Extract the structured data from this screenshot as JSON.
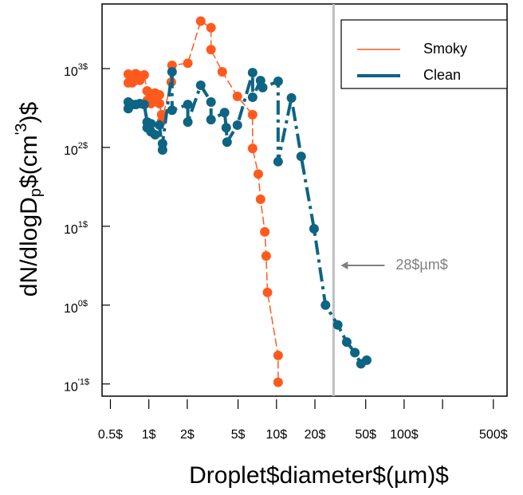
{
  "chart_data": {
    "type": "scatter",
    "xlabel": "Droplet$diameter$(µm)$",
    "ylabel": {
      "main": "dN/dlogD",
      "sub": "p",
      "mid": "$(cm",
      "sup": "'3",
      "end": ")$"
    },
    "xlog": true,
    "ylog": true,
    "xlim": [
      0.43,
      640
    ],
    "ylim": [
      0.07,
      6600
    ],
    "xticks": [
      {
        "value": 0.5,
        "label": "0.5$"
      },
      {
        "value": 1,
        "label": "1$"
      },
      {
        "value": 2,
        "label": "2$"
      },
      {
        "value": 5,
        "label": "5$"
      },
      {
        "value": 10,
        "label": "10$"
      },
      {
        "value": 20,
        "label": "20$"
      },
      {
        "value": 50,
        "label": "50$"
      },
      {
        "value": 100,
        "label": "100$"
      },
      {
        "value": 500,
        "label": "500$"
      }
    ],
    "xticks_unlabeled": [
      200
    ],
    "yticks": [
      {
        "value": 1000,
        "label": "10",
        "exponent": "3$"
      },
      {
        "value": 100,
        "label": "10",
        "exponent": "2$"
      },
      {
        "value": 10,
        "label": "10",
        "exponent": "1$"
      },
      {
        "value": 1,
        "label": "10",
        "exponent": "0$"
      },
      {
        "value": 0.1,
        "label": "10",
        "exponent": "'1$"
      }
    ],
    "vline": {
      "x": 28,
      "color": "#c0c0c0",
      "label": "28$µm$"
    },
    "legend": "upper right",
    "series": [
      {
        "name": "Smoky",
        "color": "#ff5a1e",
        "style": "dashed-thin",
        "x": [
          0.69,
          0.69,
          0.74,
          0.74,
          0.79,
          0.79,
          0.85,
          0.85,
          0.92,
          0.97,
          0.97,
          1.04,
          1.04,
          1.12,
          1.12,
          1.21,
          1.21,
          1.26,
          1.26,
          1.5,
          1.52,
          2.02,
          2.55,
          3.07,
          3.07,
          3.76,
          4.94,
          6.5,
          6.5,
          7.2,
          7.5,
          8.1,
          8.3,
          8.5,
          10.3,
          10.3
        ],
        "values": [
          850,
          660,
          770,
          660,
          860,
          710,
          810,
          710,
          830,
          520,
          395,
          480,
          360,
          490,
          405,
          465,
          360,
          260,
          215,
          675,
          1100,
          1170,
          4000,
          3300,
          1740,
          910,
          445,
          260,
          97,
          46,
          22,
          8.5,
          4.2,
          1.45,
          0.23,
          0.105
        ]
      },
      {
        "name": "Clean",
        "color": "#0e6483",
        "style": "dashdot-thick",
        "x": [
          0.69,
          0.69,
          0.74,
          0.79,
          0.85,
          0.92,
          0.97,
          0.97,
          1.04,
          1.04,
          1.12,
          1.21,
          1.28,
          1.28,
          1.52,
          1.52,
          2.02,
          2.02,
          2.55,
          3.07,
          3.07,
          3.92,
          4.04,
          4.1,
          4.94,
          6.5,
          6.5,
          7.5,
          7.8,
          10.3,
          10.3,
          13.1,
          15.6,
          19.7,
          24.2,
          30.2,
          35.5,
          41.1,
          45.9,
          50.9
        ],
        "values": [
          377,
          311,
          350,
          350,
          360,
          350,
          210,
          178,
          158,
          200,
          145,
          192,
          93,
          112,
          910,
          297,
          350,
          210,
          615,
          377,
          225,
          277,
          178,
          117,
          192,
          890,
          433,
          705,
          575,
          690,
          66,
          424,
          77,
          9.3,
          1,
          0.56,
          0.34,
          0.25,
          0.18,
          0.2
        ]
      }
    ]
  }
}
